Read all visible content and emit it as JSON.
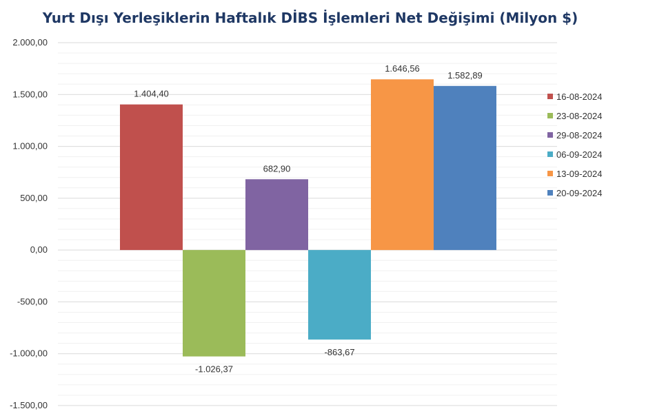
{
  "chart_data": {
    "type": "bar",
    "title": "Yurt Dışı Yerleşiklerin Haftalık DİBS İşlemleri Net Değişimi (Milyon $)",
    "xlabel": "",
    "ylabel": "",
    "ylim": [
      -1500,
      2000
    ],
    "ytick_step": 500,
    "yticks": [
      "2.000,00",
      "1.500,00",
      "1.000,00",
      "500,00",
      "0,00",
      "-500,00",
      "-1.000,00",
      "-1.500,00"
    ],
    "grid": true,
    "legend_position": "right",
    "series": [
      {
        "name": "16-08-2024",
        "value": 1404.4,
        "label": "1.404,40",
        "color": "#c0504d"
      },
      {
        "name": "23-08-2024",
        "value": -1026.37,
        "label": "-1.026,37",
        "color": "#9bbb59"
      },
      {
        "name": "29-08-2024",
        "value": 682.9,
        "label": "682,90",
        "color": "#8064a2"
      },
      {
        "name": "06-09-2024",
        "value": -863.67,
        "label": "-863,67",
        "color": "#4bacc6"
      },
      {
        "name": "13-09-2024",
        "value": 1646.56,
        "label": "1.646,56",
        "color": "#f79646"
      },
      {
        "name": "20-09-2024",
        "value": 1582.89,
        "label": "1.582,89",
        "color": "#4f81bd"
      }
    ]
  }
}
